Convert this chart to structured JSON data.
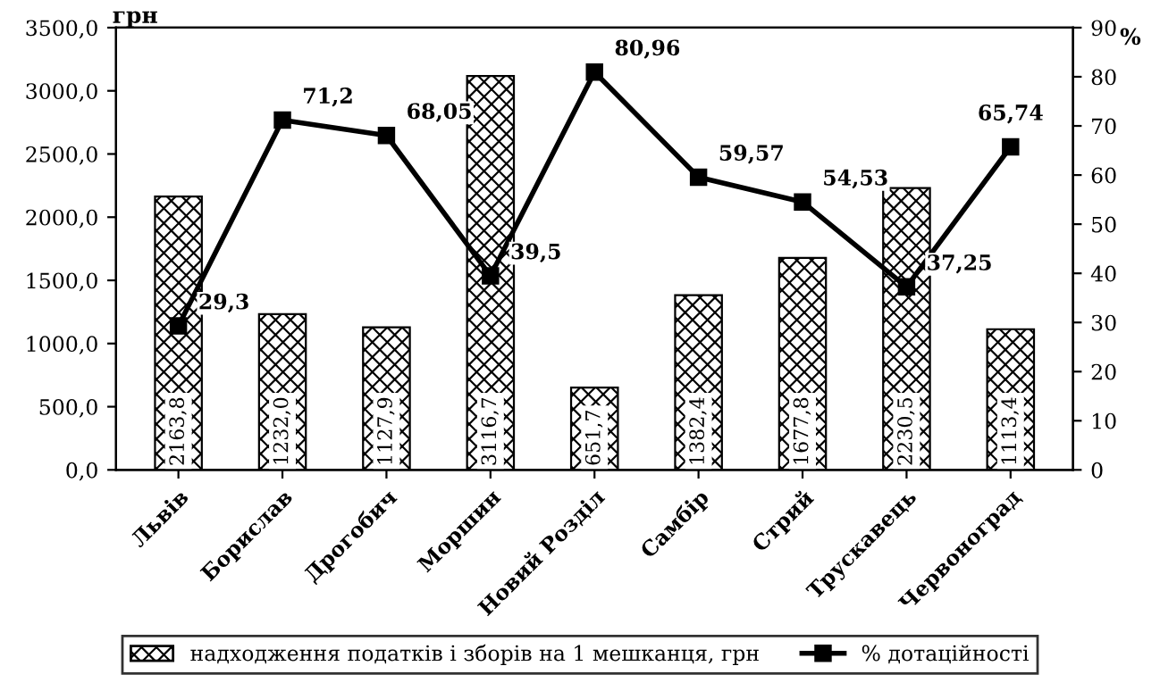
{
  "chart_data": {
    "type": "bar",
    "categories": [
      "Львів",
      "Борислав",
      "Дрогобич",
      "Моршин",
      "Новий Розділ",
      "Самбір",
      "Стрий",
      "Трускавець",
      "Червоноград"
    ],
    "ylabel": "грн",
    "y2label": "%",
    "series": [
      {
        "name": "надходження податків і зборів на 1 мешканця, грн",
        "color": "#000000",
        "values": [
          2163.8,
          1232.0,
          1127.9,
          3116.7,
          651.7,
          1382.4,
          1677.8,
          2230.5,
          1113.4
        ],
        "value_labels": [
          "2163,8",
          "1232,0",
          "1127,9",
          "3116,7",
          "651,7",
          "1382,4",
          "1677,8",
          "2230,5",
          "1113,4"
        ]
      },
      {
        "name": "% дотаційності",
        "type": "line",
        "axis": "y2",
        "color": "#000000",
        "marker": "square",
        "values": [
          29.3,
          71.2,
          68.05,
          39.5,
          80.96,
          59.57,
          54.53,
          37.25,
          65.74
        ],
        "value_labels": [
          "29,3",
          "71,2",
          "68,05",
          "39,5",
          "80,96",
          "59,57",
          "54,53",
          "37,25",
          "65,74"
        ]
      }
    ],
    "ylim": [
      0,
      3500
    ],
    "yticks": [
      {
        "value": 0,
        "label": "0,0"
      },
      {
        "value": 500,
        "label": "500,0"
      },
      {
        "value": 1000,
        "label": "1000,0"
      },
      {
        "value": 1500,
        "label": "1500,0"
      },
      {
        "value": 2000,
        "label": "2000,0"
      },
      {
        "value": 2500,
        "label": "2500,0"
      },
      {
        "value": 3000,
        "label": "3000,0"
      },
      {
        "value": 3500,
        "label": "3500,0"
      }
    ],
    "y2lim": [
      0,
      90
    ],
    "y2ticks": [
      0,
      10,
      20,
      30,
      40,
      50,
      60,
      70,
      80,
      90
    ],
    "grid": false,
    "legend": "bottom"
  }
}
